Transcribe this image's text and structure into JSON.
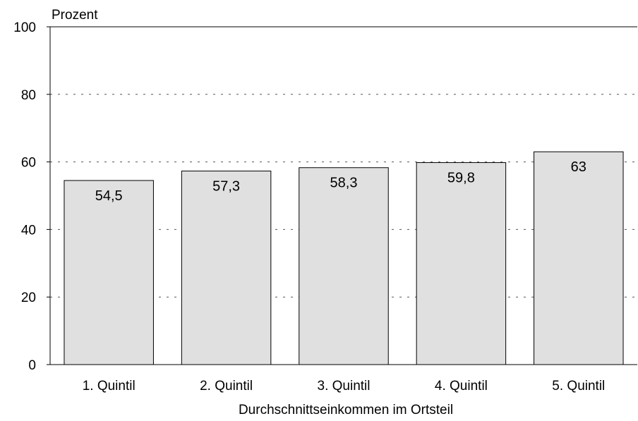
{
  "chart_data": {
    "type": "bar",
    "categories": [
      "1. Quintil",
      "2. Quintil",
      "3. Quintil",
      "4. Quintil",
      "5. Quintil"
    ],
    "values": [
      54.5,
      57.3,
      58.3,
      59.8,
      63
    ],
    "value_labels": [
      "54,5",
      "57,3",
      "58,3",
      "59,8",
      "63"
    ],
    "ylabel": "Prozent",
    "xlabel": "Durchschnittseinkommen im Ortsteil",
    "ylim": [
      0,
      100
    ],
    "yticks": [
      0,
      20,
      40,
      60,
      80,
      100
    ],
    "grid": "horizontal dotted",
    "colors": {
      "bar_fill": "#e0e0e0",
      "bar_stroke": "#000000",
      "grid": "#555555"
    }
  }
}
